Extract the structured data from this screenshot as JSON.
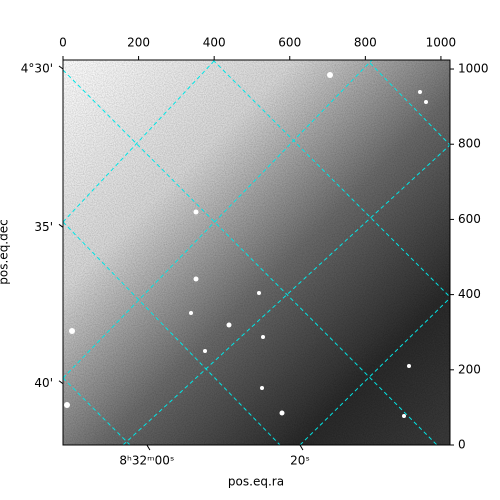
{
  "chart_data": {
    "type": "image",
    "xlabel": "pos.eq.ra",
    "ylabel": "pos.eq.dec",
    "xlim": [
      0,
      1024
    ],
    "ylim": [
      0,
      1024
    ],
    "xticks": [
      0,
      200,
      400,
      600,
      800,
      1000
    ],
    "yticks": [
      0,
      200,
      400,
      600,
      800,
      1000
    ],
    "ra_ticks": [
      {
        "value": 222,
        "label": "8ʰ32ᵐ00ˢ"
      },
      {
        "value": 627,
        "label": "20ˢ"
      }
    ],
    "dec_ticks": [
      {
        "value": 1000,
        "label": "4°30'"
      },
      {
        "value": 579,
        "label": "35'"
      },
      {
        "value": 163,
        "label": "40'"
      }
    ],
    "grid_color": "#00e5e5"
  }
}
